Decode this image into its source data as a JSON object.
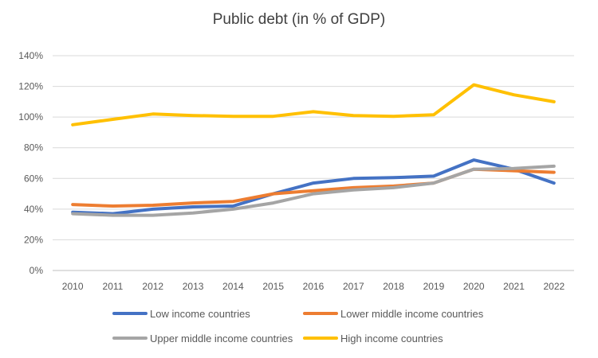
{
  "chart_data": {
    "type": "line",
    "title": "Public debt (in % of GDP)",
    "xlabel": "",
    "ylabel": "",
    "x": [
      "2010",
      "2011",
      "2012",
      "2013",
      "2014",
      "2015",
      "2016",
      "2017",
      "2018",
      "2019",
      "2020",
      "2021",
      "2022"
    ],
    "y_ticks": [
      "0%",
      "20%",
      "40%",
      "60%",
      "80%",
      "100%",
      "120%",
      "140%"
    ],
    "ylim": [
      0,
      140
    ],
    "grid": true,
    "legend_position": "bottom",
    "series": [
      {
        "name": "Low income countries",
        "color": "#4472C4",
        "values": [
          38,
          37,
          40,
          41.5,
          42,
          50,
          57,
          60,
          60.5,
          61.5,
          72,
          66,
          57
        ]
      },
      {
        "name": "Lower middle income countries",
        "color": "#ED7D31",
        "values": [
          43,
          42,
          42.5,
          44,
          45,
          50,
          52,
          54,
          55,
          57,
          66,
          65,
          64
        ]
      },
      {
        "name": "Upper middle income countries",
        "color": "#A5A5A5",
        "values": [
          37,
          36,
          36,
          37.5,
          40,
          44,
          50,
          52.5,
          54,
          57,
          66,
          66.5,
          68
        ]
      },
      {
        "name": "High income countries",
        "color": "#FFC000",
        "values": [
          95,
          98.5,
          102,
          101,
          100.5,
          100.5,
          103.5,
          101,
          100.5,
          101.5,
          121,
          114.5,
          110
        ]
      }
    ]
  }
}
